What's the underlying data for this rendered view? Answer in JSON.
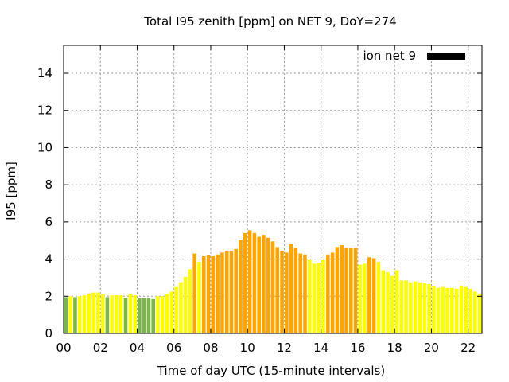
{
  "chart_data": {
    "type": "bar",
    "title": "Total I95 zenith [ppm] on NET 9, DoY=274",
    "xlabel": "Time of day UTC (15-minute intervals)",
    "ylabel": "I95 [ppm]",
    "ylim": [
      0,
      15.5
    ],
    "xlim": [
      0,
      22.75
    ],
    "yticks": [
      "0",
      "2",
      "4",
      "6",
      "8",
      "10",
      "12",
      "14"
    ],
    "xticks": [
      "00",
      "02",
      "04",
      "06",
      "08",
      "10",
      "12",
      "14",
      "16",
      "18",
      "20",
      "22"
    ],
    "grid": true,
    "legend": {
      "label": "ion net 9",
      "position": "top-right"
    },
    "bar_width_hours": 0.25,
    "colors": {
      "green": "#7ab648",
      "yellow": "#ffff00",
      "orange": "#ffa500",
      "key": "#000000"
    },
    "bars": [
      {
        "t": 0.25,
        "v": 1.95,
        "c": "green"
      },
      {
        "t": 0.5,
        "v": 2.0,
        "c": "yellow"
      },
      {
        "t": 0.75,
        "v": 1.95,
        "c": "green"
      },
      {
        "t": 1.0,
        "v": 2.0,
        "c": "yellow"
      },
      {
        "t": 1.25,
        "v": 2.05,
        "c": "yellow"
      },
      {
        "t": 1.5,
        "v": 2.15,
        "c": "yellow"
      },
      {
        "t": 1.75,
        "v": 2.2,
        "c": "yellow"
      },
      {
        "t": 2.0,
        "v": 2.2,
        "c": "yellow"
      },
      {
        "t": 2.25,
        "v": 2.1,
        "c": "yellow"
      },
      {
        "t": 2.5,
        "v": 1.95,
        "c": "green"
      },
      {
        "t": 2.75,
        "v": 2.05,
        "c": "yellow"
      },
      {
        "t": 3.0,
        "v": 2.05,
        "c": "yellow"
      },
      {
        "t": 3.25,
        "v": 2.05,
        "c": "yellow"
      },
      {
        "t": 3.5,
        "v": 1.9,
        "c": "green"
      },
      {
        "t": 3.75,
        "v": 2.1,
        "c": "yellow"
      },
      {
        "t": 4.0,
        "v": 2.05,
        "c": "yellow"
      },
      {
        "t": 4.25,
        "v": 1.9,
        "c": "green"
      },
      {
        "t": 4.5,
        "v": 1.9,
        "c": "green"
      },
      {
        "t": 4.75,
        "v": 1.9,
        "c": "green"
      },
      {
        "t": 5.0,
        "v": 1.85,
        "c": "green"
      },
      {
        "t": 5.25,
        "v": 2.0,
        "c": "yellow"
      },
      {
        "t": 5.5,
        "v": 2.0,
        "c": "yellow"
      },
      {
        "t": 5.75,
        "v": 2.1,
        "c": "yellow"
      },
      {
        "t": 6.0,
        "v": 2.25,
        "c": "yellow"
      },
      {
        "t": 6.25,
        "v": 2.5,
        "c": "yellow"
      },
      {
        "t": 6.5,
        "v": 2.75,
        "c": "yellow"
      },
      {
        "t": 6.75,
        "v": 3.05,
        "c": "yellow"
      },
      {
        "t": 7.0,
        "v": 3.45,
        "c": "yellow"
      },
      {
        "t": 7.25,
        "v": 4.3,
        "c": "orange"
      },
      {
        "t": 7.5,
        "v": 3.85,
        "c": "yellow"
      },
      {
        "t": 7.75,
        "v": 4.15,
        "c": "orange"
      },
      {
        "t": 8.0,
        "v": 4.2,
        "c": "orange"
      },
      {
        "t": 8.25,
        "v": 4.15,
        "c": "orange"
      },
      {
        "t": 8.5,
        "v": 4.25,
        "c": "orange"
      },
      {
        "t": 8.75,
        "v": 4.35,
        "c": "orange"
      },
      {
        "t": 9.0,
        "v": 4.45,
        "c": "orange"
      },
      {
        "t": 9.25,
        "v": 4.45,
        "c": "orange"
      },
      {
        "t": 9.5,
        "v": 4.55,
        "c": "orange"
      },
      {
        "t": 9.75,
        "v": 5.05,
        "c": "orange"
      },
      {
        "t": 10.0,
        "v": 5.4,
        "c": "orange"
      },
      {
        "t": 10.25,
        "v": 5.55,
        "c": "orange"
      },
      {
        "t": 10.5,
        "v": 5.4,
        "c": "orange"
      },
      {
        "t": 10.75,
        "v": 5.2,
        "c": "orange"
      },
      {
        "t": 11.0,
        "v": 5.3,
        "c": "orange"
      },
      {
        "t": 11.25,
        "v": 5.15,
        "c": "orange"
      },
      {
        "t": 11.5,
        "v": 4.95,
        "c": "orange"
      },
      {
        "t": 11.75,
        "v": 4.65,
        "c": "orange"
      },
      {
        "t": 12.0,
        "v": 4.45,
        "c": "orange"
      },
      {
        "t": 12.25,
        "v": 4.35,
        "c": "orange"
      },
      {
        "t": 12.5,
        "v": 4.8,
        "c": "orange"
      },
      {
        "t": 12.75,
        "v": 4.6,
        "c": "orange"
      },
      {
        "t": 13.0,
        "v": 4.3,
        "c": "orange"
      },
      {
        "t": 13.25,
        "v": 4.25,
        "c": "orange"
      },
      {
        "t": 13.5,
        "v": 3.95,
        "c": "yellow"
      },
      {
        "t": 13.75,
        "v": 3.75,
        "c": "yellow"
      },
      {
        "t": 14.0,
        "v": 3.8,
        "c": "yellow"
      },
      {
        "t": 14.25,
        "v": 3.95,
        "c": "yellow"
      },
      {
        "t": 14.5,
        "v": 4.25,
        "c": "orange"
      },
      {
        "t": 14.75,
        "v": 4.35,
        "c": "orange"
      },
      {
        "t": 15.0,
        "v": 4.65,
        "c": "orange"
      },
      {
        "t": 15.25,
        "v": 4.75,
        "c": "orange"
      },
      {
        "t": 15.5,
        "v": 4.6,
        "c": "orange"
      },
      {
        "t": 15.75,
        "v": 4.6,
        "c": "orange"
      },
      {
        "t": 16.0,
        "v": 4.6,
        "c": "orange"
      },
      {
        "t": 16.25,
        "v": 3.7,
        "c": "yellow"
      },
      {
        "t": 16.5,
        "v": 3.75,
        "c": "yellow"
      },
      {
        "t": 16.75,
        "v": 4.1,
        "c": "orange"
      },
      {
        "t": 17.0,
        "v": 4.05,
        "c": "orange"
      },
      {
        "t": 17.25,
        "v": 3.85,
        "c": "yellow"
      },
      {
        "t": 17.5,
        "v": 3.4,
        "c": "yellow"
      },
      {
        "t": 17.75,
        "v": 3.3,
        "c": "yellow"
      },
      {
        "t": 18.0,
        "v": 3.1,
        "c": "yellow"
      },
      {
        "t": 18.25,
        "v": 3.4,
        "c": "yellow"
      },
      {
        "t": 18.5,
        "v": 2.85,
        "c": "yellow"
      },
      {
        "t": 18.75,
        "v": 2.85,
        "c": "yellow"
      },
      {
        "t": 19.0,
        "v": 2.75,
        "c": "yellow"
      },
      {
        "t": 19.25,
        "v": 2.8,
        "c": "yellow"
      },
      {
        "t": 19.5,
        "v": 2.75,
        "c": "yellow"
      },
      {
        "t": 19.75,
        "v": 2.7,
        "c": "yellow"
      },
      {
        "t": 20.0,
        "v": 2.65,
        "c": "yellow"
      },
      {
        "t": 20.25,
        "v": 2.55,
        "c": "yellow"
      },
      {
        "t": 20.5,
        "v": 2.45,
        "c": "yellow"
      },
      {
        "t": 20.75,
        "v": 2.5,
        "c": "yellow"
      },
      {
        "t": 21.0,
        "v": 2.45,
        "c": "yellow"
      },
      {
        "t": 21.25,
        "v": 2.45,
        "c": "yellow"
      },
      {
        "t": 21.5,
        "v": 2.4,
        "c": "yellow"
      },
      {
        "t": 21.75,
        "v": 2.55,
        "c": "yellow"
      },
      {
        "t": 22.0,
        "v": 2.5,
        "c": "yellow"
      },
      {
        "t": 22.25,
        "v": 2.4,
        "c": "yellow"
      },
      {
        "t": 22.5,
        "v": 2.25,
        "c": "yellow"
      },
      {
        "t": 22.75,
        "v": 2.15,
        "c": "yellow"
      }
    ]
  }
}
